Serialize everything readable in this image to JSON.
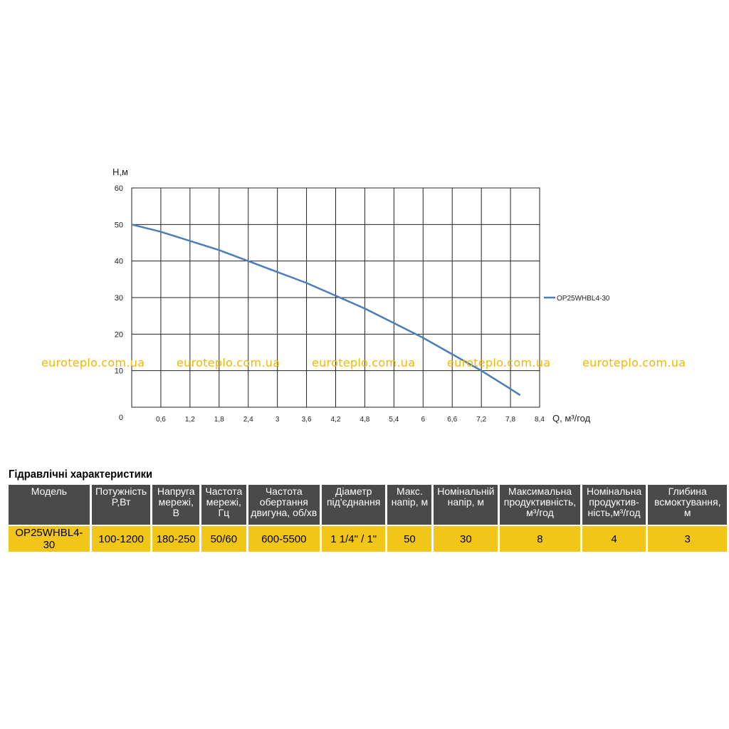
{
  "chart_data": {
    "type": "line",
    "ylabel": "H,м",
    "xlabel": "Q, м³/год",
    "xlim": [
      0,
      8.4
    ],
    "ylim": [
      0,
      60
    ],
    "grid": true,
    "legend": "right",
    "x_ticks": [
      "0,6",
      "1,2",
      "1,8",
      "2,4",
      "3",
      "3,6",
      "4,2",
      "4,8",
      "5,4",
      "6",
      "6,6",
      "7,2",
      "7,8",
      "8,4"
    ],
    "y_ticks": [
      "0",
      "10",
      "20",
      "30",
      "40",
      "50",
      "60"
    ],
    "series": [
      {
        "name": "OP25WHBL4-30",
        "color": "#4a7ebb",
        "x": [
          0,
          0.6,
          1.2,
          1.8,
          2.4,
          3.0,
          3.6,
          4.2,
          4.8,
          5.4,
          6.0,
          6.6,
          7.2,
          7.8,
          8.0
        ],
        "y": [
          50,
          48,
          45.5,
          43,
          40,
          37,
          34,
          30.5,
          27,
          23,
          19,
          14.5,
          10,
          5,
          3.3
        ]
      }
    ]
  },
  "watermark": "euroteplo.com.ua",
  "section_title": "Гідравлічні характеристики",
  "table": {
    "headers": [
      {
        "lines": [
          "Модель"
        ]
      },
      {
        "lines": [
          "Потужність",
          "P,Вт"
        ]
      },
      {
        "lines": [
          "Напруга",
          "мережі,",
          "В"
        ]
      },
      {
        "lines": [
          "Частота",
          "мережі,",
          "Гц"
        ]
      },
      {
        "lines": [
          "Частота",
          "обертання",
          "двигуна, об/хв"
        ]
      },
      {
        "lines": [
          "Діаметр",
          "під'єднання"
        ]
      },
      {
        "lines": [
          "Макс.",
          "напір, м"
        ]
      },
      {
        "lines": [
          "Номінальній",
          "напір, м"
        ]
      },
      {
        "lines": [
          "Максимальна",
          "продуктивність,",
          "м³/год"
        ]
      },
      {
        "lines": [
          "Номінальна",
          "продуктив-",
          "ність,м³/год"
        ]
      },
      {
        "lines": [
          "Глибина",
          "всмоктування,",
          "м"
        ]
      }
    ],
    "row": [
      "OP25WHBL4-30",
      "100-1200",
      "180-250",
      "50/60",
      "600-5500",
      "1 1/4\" / 1\"",
      "50",
      "30",
      "8",
      "4",
      "3"
    ]
  }
}
